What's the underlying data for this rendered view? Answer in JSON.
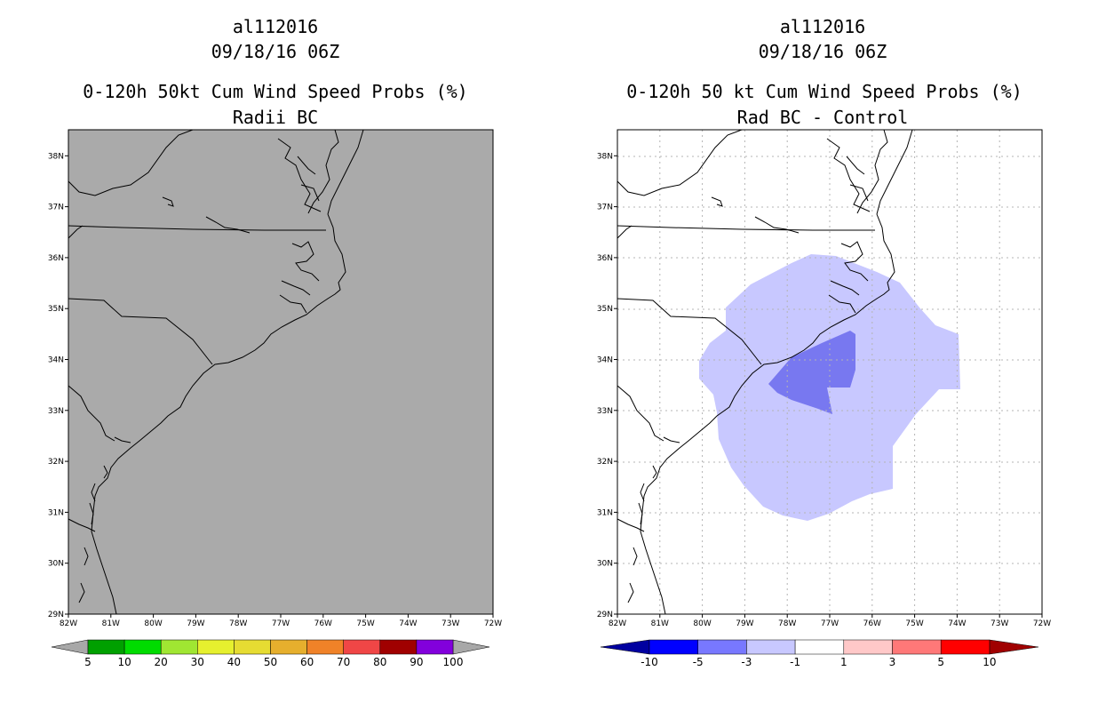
{
  "left_panel": {
    "storm_id": "al112016",
    "datetime": "09/18/16 06Z",
    "title": "0-120h 50kt Cum Wind Speed Probs (%)",
    "subtitle": "Radii BC",
    "background_color": "#aaaaaa",
    "colorbar": {
      "labels": [
        "5",
        "10",
        "20",
        "30",
        "40",
        "50",
        "60",
        "70",
        "80",
        "90",
        "100"
      ],
      "colors": [
        "#00a000",
        "#00dc00",
        "#a0e632",
        "#e6f02e",
        "#e6dc32",
        "#e6af2d",
        "#f08228",
        "#f04646",
        "#a00000",
        "#8200dc"
      ],
      "end_color": "#a8a8a8"
    }
  },
  "right_panel": {
    "storm_id": "al112016",
    "datetime": "09/18/16 06Z",
    "title": "0-120h 50 kt Cum Wind Speed Probs (%)",
    "subtitle": "Rad BC - Control",
    "background_color": "#ffffff",
    "fill_colors": {
      "minus_1_to_minus_3": "#c8c8ff",
      "minus_3_to_minus_5": "#7878f0"
    },
    "colorbar": {
      "labels": [
        "-10",
        "-5",
        "-3",
        "-1",
        "1",
        "3",
        "5",
        "10"
      ],
      "colors": [
        "#0000ff",
        "#7878ff",
        "#c8c8ff",
        "#ffffff",
        "#ffc8c8",
        "#ff7878",
        "#ff0000"
      ],
      "left_end_color": "#0000a0",
      "right_end_color": "#a00000"
    }
  },
  "axes": {
    "lon_labels": [
      "82W",
      "81W",
      "80W",
      "79W",
      "78W",
      "77W",
      "76W",
      "75W",
      "74W",
      "73W",
      "72W"
    ],
    "lat_labels": [
      "29N",
      "30N",
      "31N",
      "32N",
      "33N",
      "34N",
      "35N",
      "36N",
      "37N",
      "38N"
    ]
  }
}
